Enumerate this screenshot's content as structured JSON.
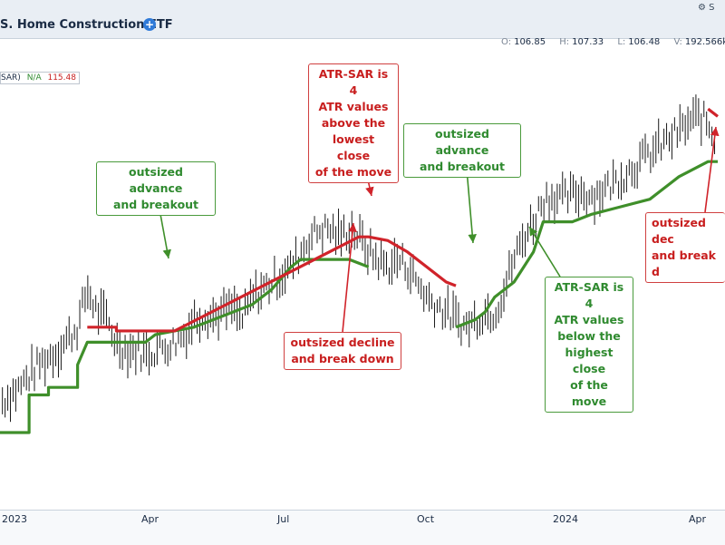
{
  "header": {
    "title": "S. Home Construction ETF",
    "logo_text": "S",
    "ohlc": [
      {
        "key": "O:",
        "value": "106.85"
      },
      {
        "key": "H:",
        "value": "107.33"
      },
      {
        "key": "L:",
        "value": "106.48"
      },
      {
        "key": "V:",
        "value": "192.566k"
      }
    ]
  },
  "legend": {
    "name": "SAR)",
    "green_value": "N/A",
    "red_value": "115.48"
  },
  "chart_data": {
    "type": "line",
    "x_ticks": [
      "2023",
      "Apr",
      "Jul",
      "Oct",
      "2024",
      "Apr"
    ],
    "ylim": [
      60,
      120
    ],
    "price_close_path": [
      [
        0,
        74
      ],
      [
        4,
        76
      ],
      [
        8,
        79
      ],
      [
        12,
        81
      ],
      [
        16,
        84
      ],
      [
        18,
        89
      ],
      [
        20,
        86
      ],
      [
        22,
        85
      ],
      [
        24,
        82
      ],
      [
        26,
        81
      ],
      [
        28,
        81
      ],
      [
        30,
        80.5
      ],
      [
        32,
        81
      ],
      [
        34,
        81.5
      ],
      [
        36,
        82
      ],
      [
        38,
        83
      ],
      [
        40,
        85
      ],
      [
        42,
        86
      ],
      [
        44,
        85.5
      ],
      [
        46,
        86
      ],
      [
        48,
        86.5
      ],
      [
        50,
        85
      ],
      [
        52,
        88
      ],
      [
        54,
        89
      ],
      [
        56,
        90
      ],
      [
        58,
        91
      ],
      [
        60,
        92
      ],
      [
        62,
        94
      ],
      [
        64,
        96
      ],
      [
        66,
        97
      ],
      [
        68,
        97
      ],
      [
        70,
        96
      ],
      [
        72,
        97
      ],
      [
        74,
        96
      ],
      [
        76,
        94
      ],
      [
        78,
        93
      ],
      [
        80,
        92
      ],
      [
        82,
        93
      ],
      [
        84,
        92
      ],
      [
        86,
        90
      ],
      [
        88,
        88
      ],
      [
        90,
        87
      ],
      [
        92,
        86
      ],
      [
        94,
        85
      ],
      [
        96,
        84
      ],
      [
        98,
        85
      ],
      [
        100,
        86
      ],
      [
        102,
        86
      ],
      [
        104,
        89
      ],
      [
        106,
        93
      ],
      [
        108,
        96
      ],
      [
        110,
        98
      ],
      [
        112,
        101
      ],
      [
        114,
        101.5
      ],
      [
        116,
        101
      ],
      [
        118,
        101.5
      ],
      [
        120,
        102
      ],
      [
        122,
        101.5
      ],
      [
        124,
        102
      ],
      [
        126,
        103
      ],
      [
        128,
        104
      ],
      [
        130,
        105
      ],
      [
        132,
        106
      ],
      [
        134,
        107
      ],
      [
        136,
        108
      ],
      [
        138,
        109
      ],
      [
        140,
        110
      ],
      [
        142,
        111
      ],
      [
        144,
        112
      ],
      [
        146,
        111
      ],
      [
        148,
        108
      ]
    ],
    "atr_sar_support": [
      [
        0,
        70
      ],
      [
        6,
        70
      ],
      [
        6,
        75
      ],
      [
        10,
        75
      ],
      [
        10,
        76
      ],
      [
        16,
        76
      ],
      [
        16,
        79
      ],
      [
        18,
        82
      ],
      [
        30,
        82
      ],
      [
        32,
        83
      ],
      [
        40,
        84
      ],
      [
        44,
        85
      ],
      [
        52,
        87
      ],
      [
        56,
        89
      ],
      [
        60,
        92
      ],
      [
        62,
        93
      ],
      [
        72,
        93
      ],
      [
        76,
        92
      ]
    ],
    "atr_sar_support_2": [
      [
        94,
        84
      ],
      [
        98,
        85
      ],
      [
        100,
        86
      ],
      [
        102,
        88
      ],
      [
        106,
        90
      ],
      [
        110,
        94
      ],
      [
        112,
        98
      ],
      [
        118,
        98
      ],
      [
        122,
        99
      ],
      [
        128,
        100
      ],
      [
        134,
        101
      ],
      [
        136,
        102
      ],
      [
        138,
        103
      ],
      [
        140,
        104
      ],
      [
        146,
        106
      ],
      [
        148,
        106
      ]
    ],
    "atr_sar_resistance": [
      [
        18,
        84
      ],
      [
        24,
        84
      ],
      [
        24,
        83.5
      ],
      [
        36,
        83.5
      ],
      [
        74,
        96
      ],
      [
        76,
        96
      ],
      [
        80,
        95.5
      ],
      [
        84,
        94
      ],
      [
        88,
        92
      ],
      [
        92,
        90
      ],
      [
        94,
        89.5
      ]
    ],
    "atr_sar_resistance_2": [
      [
        146,
        113
      ],
      [
        148,
        112
      ]
    ],
    "annotations": [
      {
        "text": "outsized advance\nand breakout",
        "color": "green"
      },
      {
        "text": "ATR-SAR is 4\nATR values\nabove the\nlowest close\nof the move",
        "color": "red"
      },
      {
        "text": "outsized advance\nand breakout",
        "color": "green"
      },
      {
        "text": "outsized decline\nand break down",
        "color": "red"
      },
      {
        "text": "ATR-SAR is 4\nATR values\nbelow the\nhighest close\nof the move",
        "color": "green"
      },
      {
        "text": "outsized dec\nand break d",
        "color": "red"
      }
    ],
    "colors": {
      "green": "#3f8f2a",
      "red": "#d0232a",
      "bars": "#1a1a1a"
    }
  }
}
